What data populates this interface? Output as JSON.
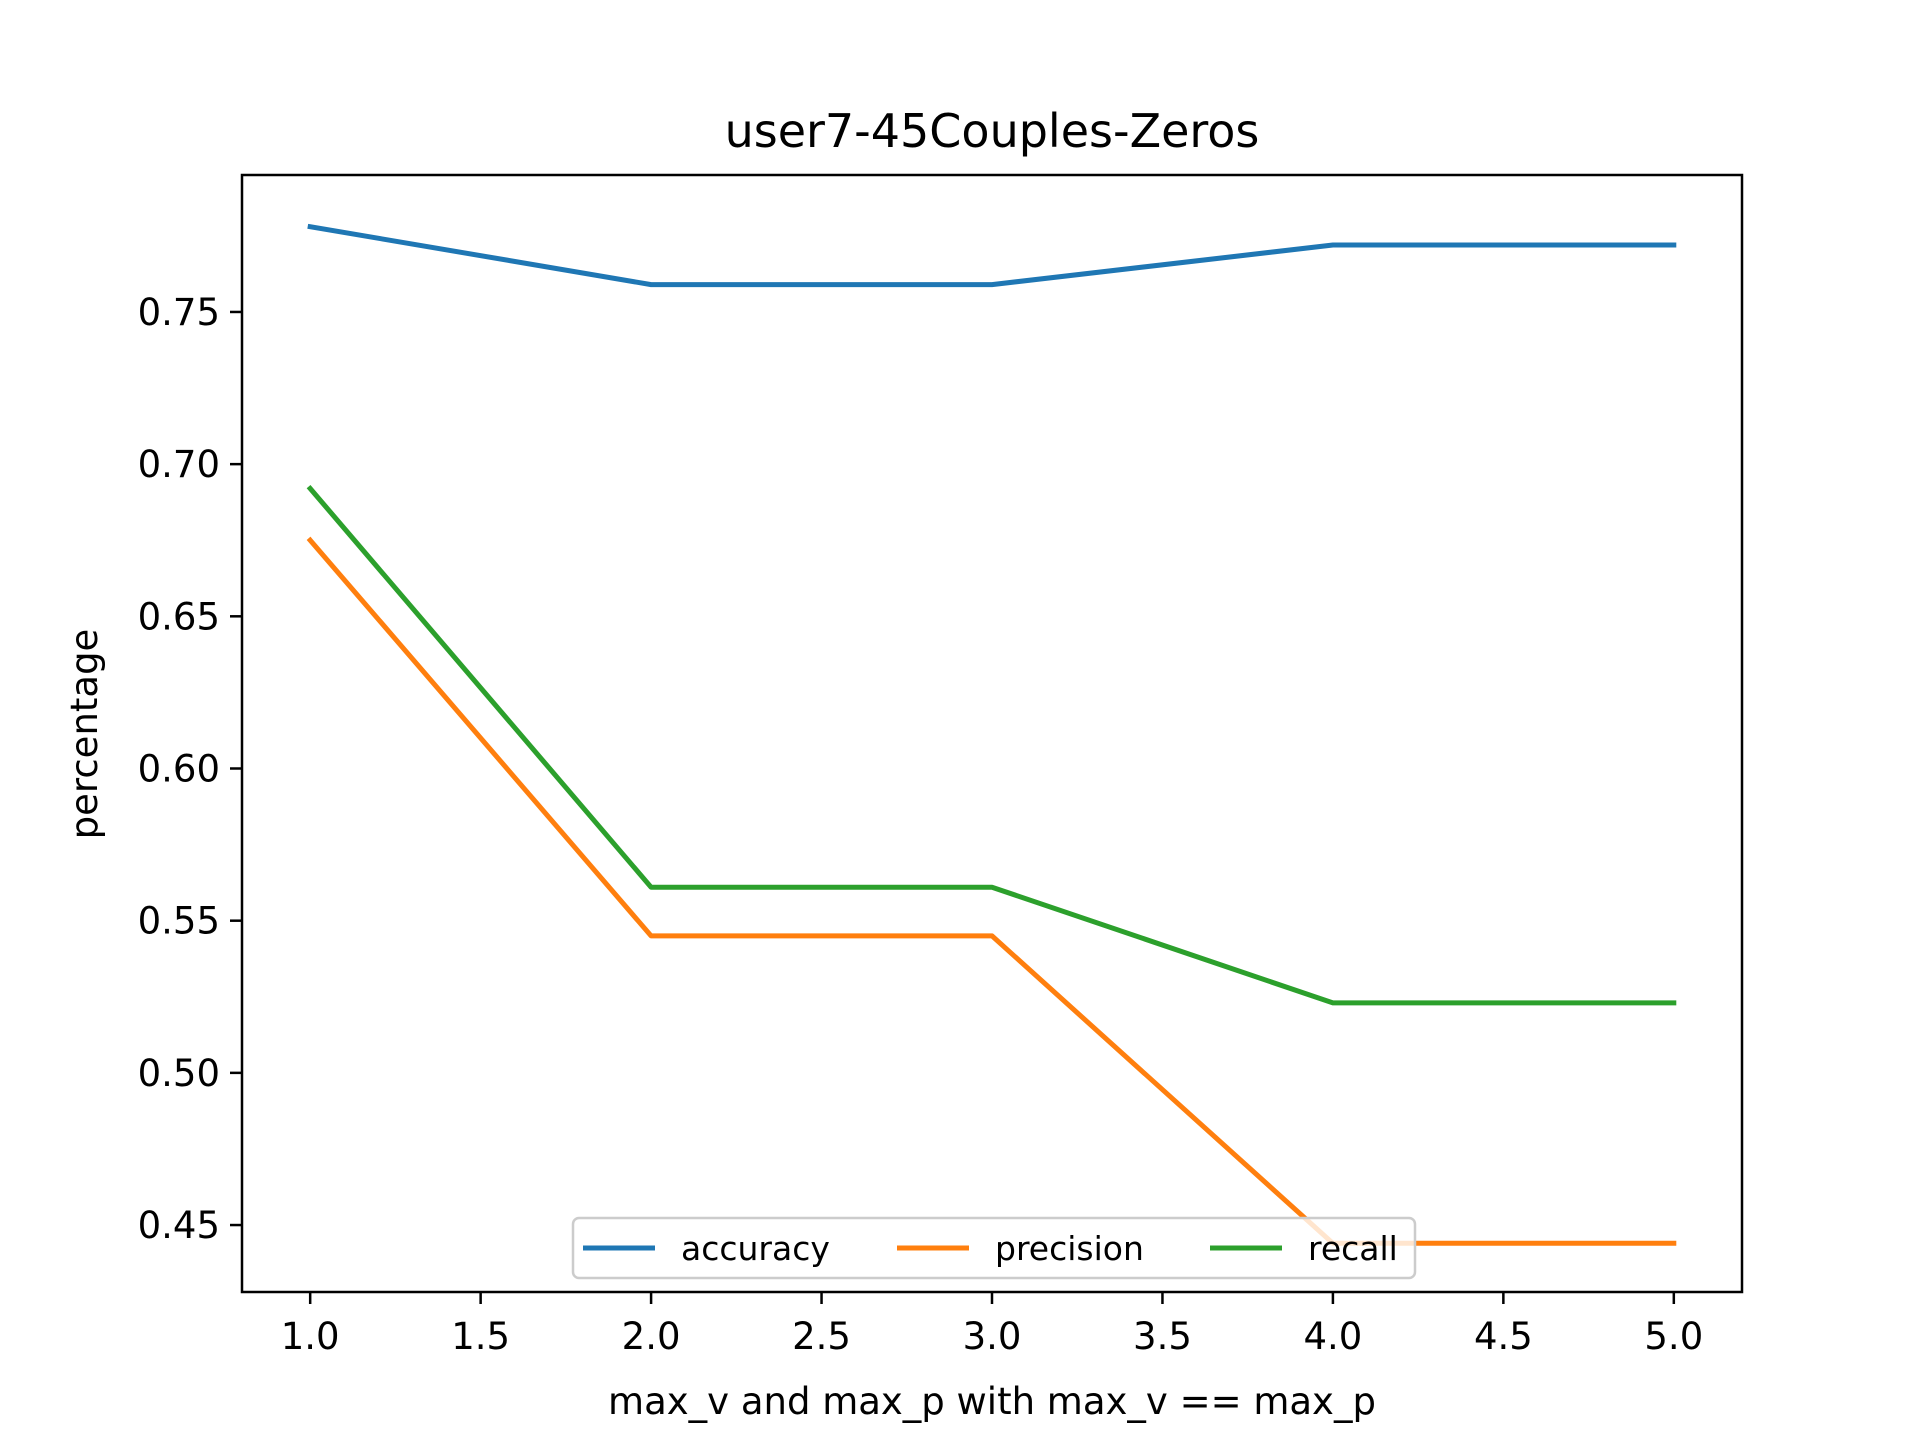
{
  "chart_data": {
    "type": "line",
    "title": "user7-45Couples-Zeros",
    "xlabel": "max_v and max_p with max_v == max_p",
    "ylabel": "percentage",
    "x": [
      1.0,
      2.0,
      3.0,
      4.0,
      5.0
    ],
    "series": [
      {
        "name": "accuracy",
        "color": "#1f77b4",
        "values": [
          0.778,
          0.759,
          0.759,
          0.772,
          0.772
        ]
      },
      {
        "name": "precision",
        "color": "#ff7f0e",
        "values": [
          0.675,
          0.545,
          0.545,
          0.444,
          0.444
        ]
      },
      {
        "name": "recall",
        "color": "#2ca02c",
        "values": [
          0.692,
          0.561,
          0.561,
          0.523,
          0.523
        ]
      }
    ],
    "xlim": [
      0.8,
      5.2
    ],
    "ylim": [
      0.428,
      0.795
    ],
    "xticks": [
      "1.0",
      "1.5",
      "2.0",
      "2.5",
      "3.0",
      "3.5",
      "4.0",
      "4.5",
      "5.0"
    ],
    "yticks": [
      "0.45",
      "0.50",
      "0.55",
      "0.60",
      "0.65",
      "0.70",
      "0.75"
    ],
    "grid": false,
    "legend_position": "lower-center"
  }
}
